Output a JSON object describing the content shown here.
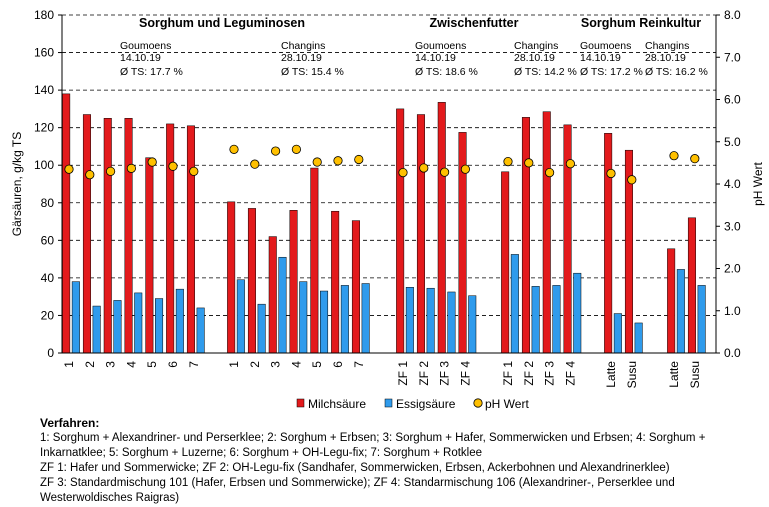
{
  "chart_data": {
    "type": "bar",
    "ylabel": "Gärsäuren, g/kg TS",
    "y2label": "pH Wert",
    "ylim": [
      0,
      180
    ],
    "y2lim": [
      0,
      8
    ],
    "yticks": [
      "0",
      "20",
      "40",
      "60",
      "80",
      "100",
      "120",
      "140",
      "160",
      "180"
    ],
    "y2ticks": [
      "0.0",
      "1.0",
      "2.0",
      "3.0",
      "4.0",
      "5.0",
      "6.0",
      "7.0",
      "8.0"
    ],
    "grid": true,
    "legend": [
      {
        "name": "Milchsäure",
        "color": "#e31a1c"
      },
      {
        "name": "Essigsäure",
        "color": "#2f9bec"
      },
      {
        "name": "pH Wert",
        "color": "#ffc000"
      }
    ],
    "section_titles": [
      "Sorghum und Leguminosen",
      "Zwischenfutter",
      "Sorghum Reinkultur"
    ],
    "annotations": [
      {
        "site": "Goumoens",
        "date": "14.10.19",
        "ts": "Ø TS: 17.7 %"
      },
      {
        "site": "Changins",
        "date": "28.10.19",
        "ts": "Ø TS: 15.4 %"
      },
      {
        "site": "Goumoens",
        "date": "14.10.19",
        "ts": "Ø TS: 18.6 %"
      },
      {
        "site": "Changins",
        "date": "28.10.19",
        "ts": "Ø TS: 14.2 %"
      },
      {
        "site": "Goumoens",
        "date": "14.10.19",
        "ts": "Ø TS: 17.2 %"
      },
      {
        "site": "Changins",
        "date": "28.10.19",
        "ts": "Ø TS: 16.2 %"
      }
    ],
    "groups": [
      {
        "categories": [
          "1",
          "2",
          "3",
          "4",
          "5",
          "6",
          "7"
        ],
        "milchsaeure": [
          138,
          127,
          125,
          125,
          104,
          122,
          121
        ],
        "essigsaeure": [
          38,
          25,
          28,
          32,
          29,
          34,
          24
        ],
        "ph": [
          4.35,
          4.22,
          4.3,
          4.37,
          4.52,
          4.42,
          4.3
        ]
      },
      {
        "categories": [
          "1",
          "2",
          "3",
          "4",
          "5",
          "6",
          "7"
        ],
        "milchsaeure": [
          80.5,
          77,
          62,
          76,
          98.5,
          75.5,
          70.5
        ],
        "essigsaeure": [
          39,
          26,
          51,
          38,
          33,
          36,
          37
        ],
        "ph": [
          4.82,
          4.47,
          4.78,
          4.82,
          4.52,
          4.55,
          4.58
        ]
      },
      {
        "categories": [
          "ZF 1",
          "ZF 2",
          "ZF 3",
          "ZF 4"
        ],
        "milchsaeure": [
          130,
          127,
          133.5,
          117.5
        ],
        "essigsaeure": [
          35,
          34.5,
          32.5,
          30.5
        ],
        "ph": [
          4.27,
          4.38,
          4.28,
          4.35
        ]
      },
      {
        "categories": [
          "ZF 1",
          "ZF 2",
          "ZF 3",
          "ZF 4"
        ],
        "milchsaeure": [
          96.5,
          125.5,
          128.5,
          121.5
        ],
        "essigsaeure": [
          52.5,
          35.5,
          36,
          42.5
        ],
        "ph": [
          4.53,
          4.5,
          4.27,
          4.48
        ]
      },
      {
        "categories": [
          "Latte",
          "Susu"
        ],
        "milchsaeure": [
          117,
          108
        ],
        "essigsaeure": [
          21,
          16
        ],
        "ph": [
          4.25,
          4.1
        ]
      },
      {
        "categories": [
          "Latte",
          "Susu"
        ],
        "milchsaeure": [
          55.5,
          72
        ],
        "essigsaeure": [
          44.5,
          36
        ],
        "ph": [
          4.67,
          4.6
        ]
      }
    ]
  },
  "notes": {
    "title": "Verfahren:",
    "lines": [
      "1: Sorghum + Alexandriner- und Perserklee; 2: Sorghum + Erbsen; 3: Sorghum + Hafer, Sommerwicken und Erbsen; 4: Sorghum + Inkarnatklee; 5: Sorghum + Luzerne; 6: Sorghum + OH-Legu-fix; 7: Sorghum + Rotklee",
      "ZF 1: Hafer und Sommerwicke; ZF 2: OH-Legu-fix (Sandhafer, Sommerwicken, Erbsen, Ackerbohnen und Alexandrinerklee)",
      "ZF 3: Standardmischung 101 (Hafer, Erbsen und Sommerwicke); ZF 4: Standarmischung 106 (Alexandriner-, Perserklee und Westerwoldisches Raigras)"
    ]
  }
}
